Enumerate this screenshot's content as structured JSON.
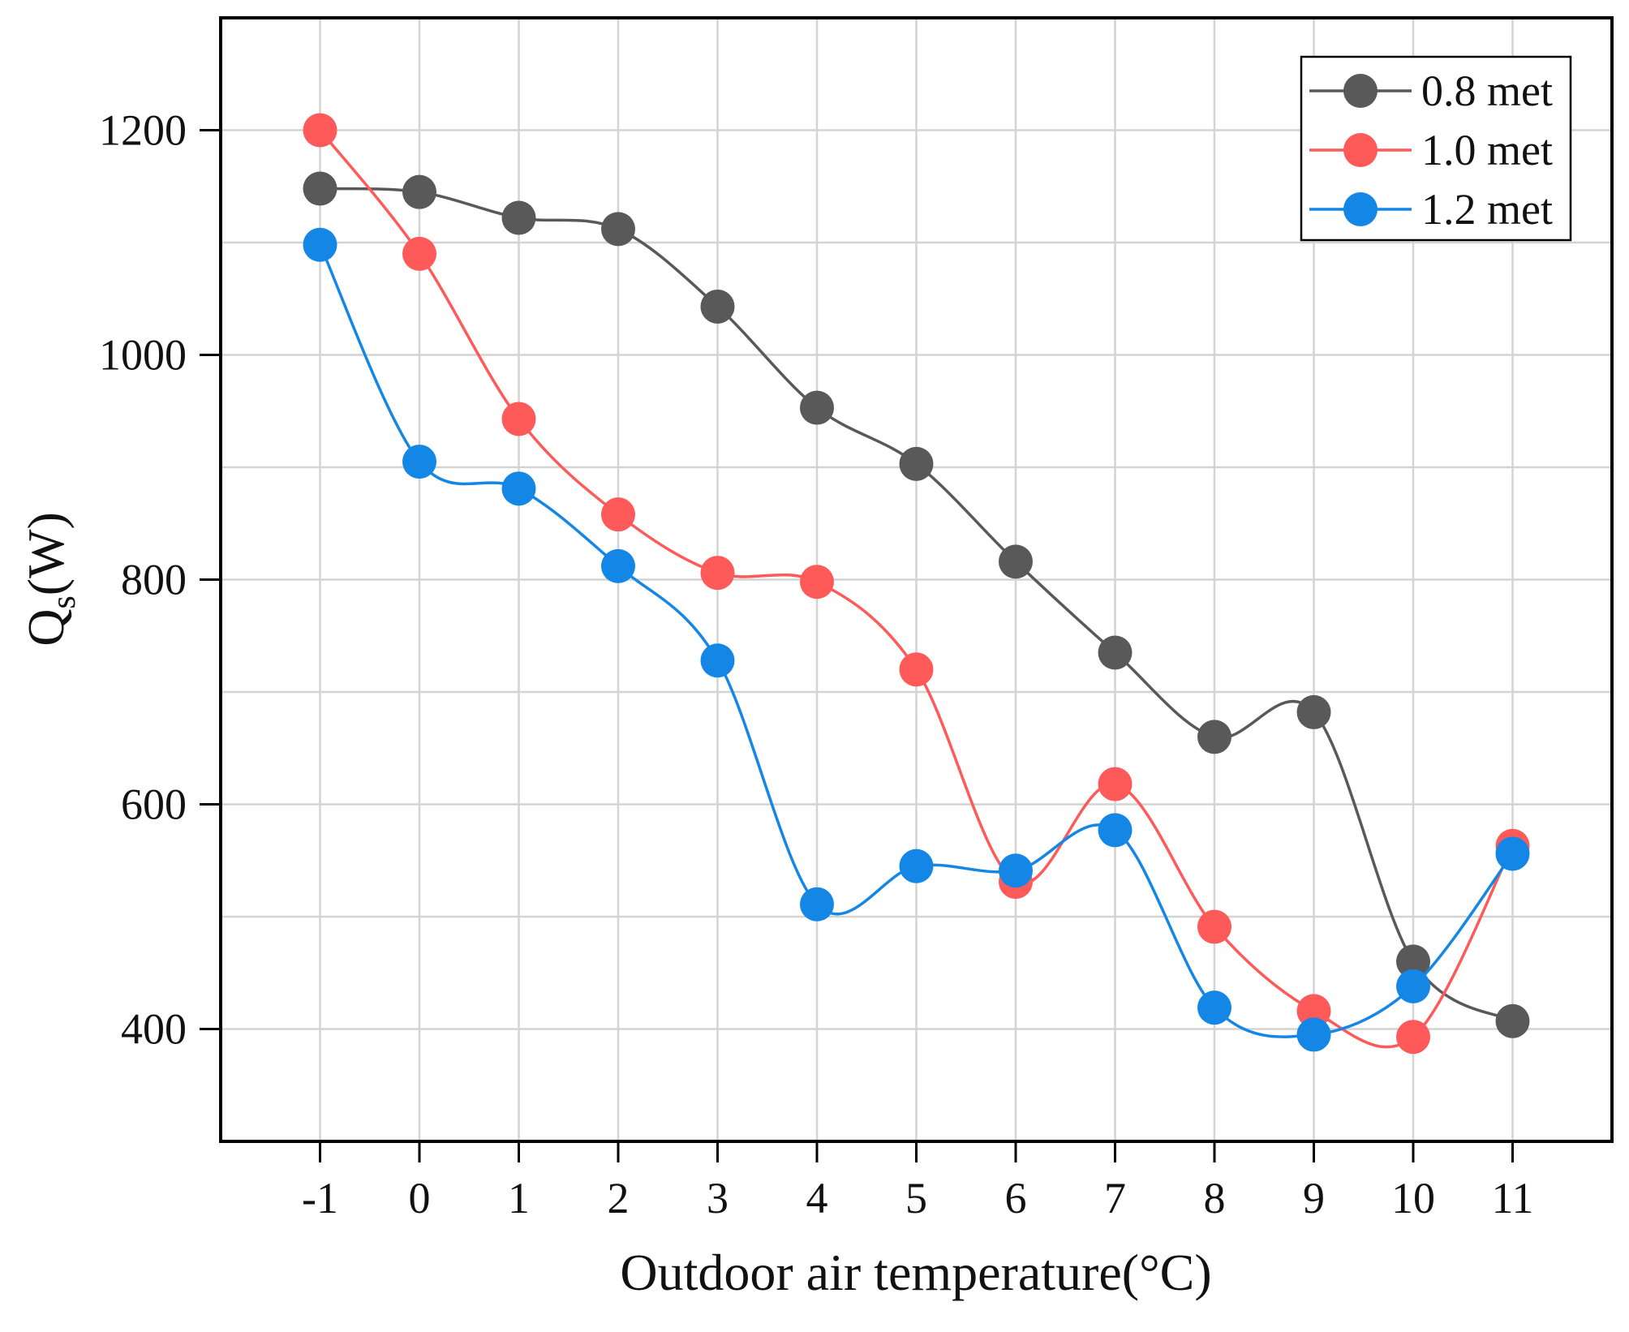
{
  "chart_data": {
    "type": "line",
    "xlabel": "Outdoor air temperature(°C)",
    "ylabel_main": "Q",
    "ylabel_sub": "s",
    "ylabel_tail": "(W)",
    "x": [
      -1,
      0,
      1,
      2,
      3,
      4,
      5,
      6,
      7,
      8,
      9,
      10,
      11
    ],
    "x_tick_labels": [
      "-1",
      "0",
      "1",
      "2",
      "3",
      "4",
      "5",
      "6",
      "7",
      "8",
      "9",
      "10",
      "11"
    ],
    "xlim": [
      -2,
      12
    ],
    "ylim": [
      300,
      1300
    ],
    "y_ticks": [
      400,
      600,
      800,
      1000,
      1200
    ],
    "y_tick_labels": [
      "400",
      "600",
      "800",
      "1000",
      "1200"
    ],
    "grid": true,
    "legend_position": "top-right",
    "series": [
      {
        "name": "0.8 met",
        "color": "#595959",
        "values": [
          1148,
          1145,
          1122,
          1112,
          1043,
          953,
          903,
          816,
          735,
          660,
          682,
          460,
          407
        ]
      },
      {
        "name": "1.0 met",
        "color": "#ff5a5a",
        "values": [
          1200,
          1090,
          943,
          858,
          806,
          798,
          720,
          531,
          618,
          491,
          416,
          393,
          563
        ]
      },
      {
        "name": "1.2 met",
        "color": "#1487e6",
        "values": [
          1098,
          905,
          881,
          812,
          728,
          511,
          545,
          541,
          577,
          419,
          395,
          438,
          556
        ]
      }
    ]
  }
}
